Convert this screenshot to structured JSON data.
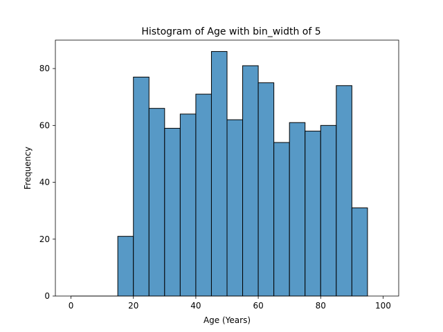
{
  "chart_data": {
    "type": "bar",
    "title": "Histogram of Age with bin_width of 5",
    "xlabel": "Age (Years)",
    "ylabel": "Frequency",
    "bin_width": 5,
    "bins": [
      {
        "start": 15,
        "end": 20,
        "count": 21
      },
      {
        "start": 20,
        "end": 25,
        "count": 77
      },
      {
        "start": 25,
        "end": 30,
        "count": 66
      },
      {
        "start": 30,
        "end": 35,
        "count": 59
      },
      {
        "start": 35,
        "end": 40,
        "count": 64
      },
      {
        "start": 40,
        "end": 45,
        "count": 71
      },
      {
        "start": 45,
        "end": 50,
        "count": 86
      },
      {
        "start": 50,
        "end": 55,
        "count": 62
      },
      {
        "start": 55,
        "end": 60,
        "count": 81
      },
      {
        "start": 60,
        "end": 65,
        "count": 75
      },
      {
        "start": 65,
        "end": 70,
        "count": 54
      },
      {
        "start": 70,
        "end": 75,
        "count": 61
      },
      {
        "start": 75,
        "end": 80,
        "count": 58
      },
      {
        "start": 80,
        "end": 85,
        "count": 60
      },
      {
        "start": 85,
        "end": 90,
        "count": 74
      },
      {
        "start": 90,
        "end": 95,
        "count": 31
      }
    ],
    "baseline_segment": [
      0,
      15
    ],
    "xlim": [
      -5,
      105
    ],
    "ylim": [
      0,
      90
    ],
    "xticks": [
      0,
      20,
      40,
      60,
      80,
      100
    ],
    "yticks": [
      0,
      20,
      40,
      60,
      80
    ],
    "grid": false,
    "colors": {
      "bar_fill": "#5799c6",
      "bar_edge": "#000000"
    }
  }
}
